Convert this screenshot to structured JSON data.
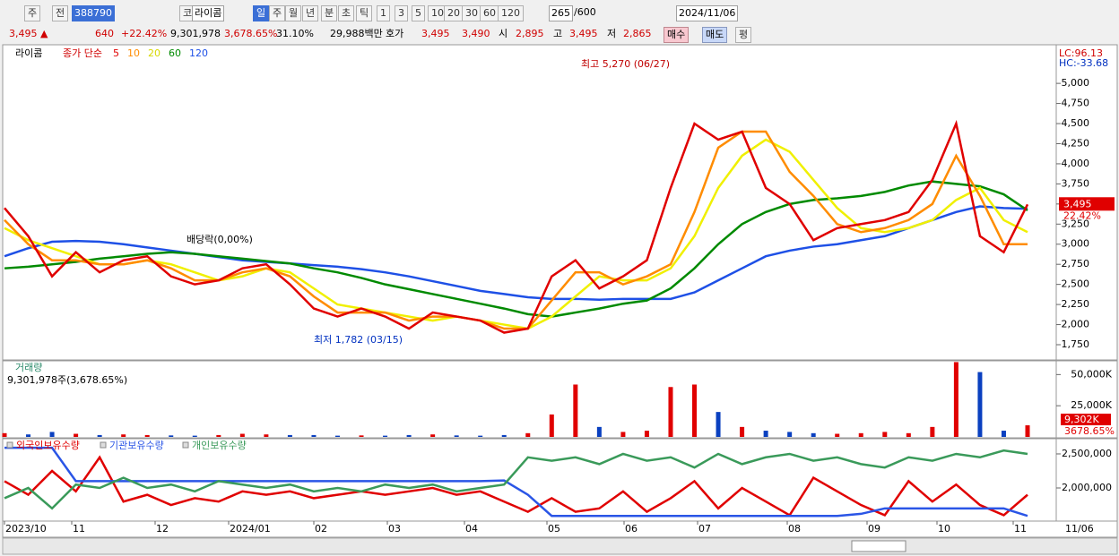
{
  "toolbar": {
    "items": [
      "주",
      "전",
      "388790",
      "코",
      "라이콤",
      "일",
      "주",
      "월",
      "년",
      "분",
      "초",
      "틱",
      "1",
      "3",
      "5",
      "10",
      "20",
      "30",
      "60",
      "120"
    ],
    "count": "265",
    "max": "/600",
    "date": "2024/11/06"
  },
  "quote": {
    "price": "3,495 ▲",
    "change": "640",
    "change_pct": "+22.42%",
    "volume": "9,301,978",
    "volume_pct": "3,678.65%",
    "turnover": "31.10%",
    "amount": "29,988백만",
    "ask_label": "호가",
    "ask": "3,495",
    "bid": "3,490",
    "open_label": "시",
    "open": "2,895",
    "high_label": "고",
    "high": "3,495",
    "low_label": "저",
    "low": "2,865",
    "buy": "매수",
    "sell": "매도",
    "avg": "평"
  },
  "chart_data": [
    {
      "type": "line",
      "name": "라이콤",
      "legend_label": "종가 단순",
      "series": [
        {
          "name": "5",
          "color": "#e00000",
          "values": [
            3450,
            3100,
            2600,
            2900,
            2650,
            2800,
            2850,
            2600,
            2500,
            2550,
            2700,
            2750,
            2500,
            2200,
            2100,
            2200,
            2100,
            1950,
            2150,
            2100,
            2050,
            1900,
            1950,
            2600,
            2800,
            2450,
            2600,
            2800,
            3700,
            4500,
            4300,
            4400,
            3700,
            3500,
            3050,
            3200,
            3250,
            3300,
            3400,
            3800,
            4500,
            3100,
            2900,
            3495
          ]
        },
        {
          "name": "10",
          "color": "#ff8c00",
          "values": [
            3300,
            3000,
            2800,
            2800,
            2750,
            2750,
            2800,
            2700,
            2550,
            2550,
            2650,
            2700,
            2600,
            2350,
            2150,
            2150,
            2150,
            2050,
            2100,
            2100,
            2050,
            1950,
            1950,
            2300,
            2650,
            2650,
            2500,
            2600,
            2750,
            3400,
            4200,
            4400,
            4400,
            3900,
            3600,
            3250,
            3150,
            3200,
            3300,
            3500,
            4100,
            3600,
            3000,
            3000
          ]
        },
        {
          "name": "20",
          "color": "#f0f000",
          "values": [
            3200,
            3050,
            2950,
            2850,
            2750,
            2750,
            2800,
            2750,
            2650,
            2550,
            2600,
            2700,
            2650,
            2450,
            2250,
            2200,
            2150,
            2100,
            2050,
            2100,
            2050,
            2000,
            1950,
            2100,
            2350,
            2600,
            2550,
            2550,
            2700,
            3100,
            3700,
            4100,
            4300,
            4150,
            3800,
            3450,
            3200,
            3150,
            3200,
            3300,
            3550,
            3700,
            3300,
            3150
          ]
        },
        {
          "name": "60",
          "color": "#008a00",
          "values": [
            2700,
            2720,
            2750,
            2780,
            2820,
            2850,
            2880,
            2900,
            2880,
            2850,
            2820,
            2790,
            2760,
            2700,
            2650,
            2580,
            2500,
            2440,
            2380,
            2320,
            2260,
            2200,
            2130,
            2100,
            2150,
            2200,
            2260,
            2300,
            2450,
            2700,
            3000,
            3250,
            3400,
            3500,
            3550,
            3570,
            3600,
            3650,
            3730,
            3780,
            3750,
            3720,
            3620,
            3420
          ]
        },
        {
          "name": "120",
          "color": "#1e50e6",
          "values": [
            2850,
            2950,
            3030,
            3040,
            3030,
            3000,
            2960,
            2920,
            2880,
            2840,
            2800,
            2780,
            2760,
            2740,
            2720,
            2690,
            2650,
            2600,
            2540,
            2480,
            2420,
            2380,
            2340,
            2320,
            2320,
            2310,
            2320,
            2320,
            2320,
            2400,
            2550,
            2700,
            2850,
            2920,
            2970,
            3000,
            3050,
            3100,
            3200,
            3300,
            3400,
            3470,
            3450,
            3440
          ]
        }
      ],
      "ylim": [
        1583,
        5458
      ],
      "yticks": [
        {
          "value": 1750,
          "label": "1,750"
        },
        {
          "value": 2000,
          "label": "2,000"
        },
        {
          "value": 2250,
          "label": "2,250"
        },
        {
          "value": 2500,
          "label": "2,500"
        },
        {
          "value": 2750,
          "label": "2,750"
        },
        {
          "value": 3000,
          "label": "3,000"
        },
        {
          "value": 3250,
          "label": "3,250"
        },
        {
          "value": 3500,
          "label": "3,500"
        },
        {
          "value": 3750,
          "label": "3,750"
        },
        {
          "value": 4000,
          "label": "4,000"
        },
        {
          "value": 4250,
          "label": "4,250"
        },
        {
          "value": 4500,
          "label": "4,500"
        },
        {
          "value": 4750,
          "label": "4,750"
        },
        {
          "value": 5000,
          "label": "5,000"
        }
      ],
      "annotations": [
        "최고 5,270 (06/27)",
        "배당락(0,00%)",
        "최저 1,782 (03/15)"
      ],
      "side_labels": [
        "LC:96.13",
        "HC:-33.68"
      ],
      "last_value_label": "3,495",
      "last_change_label": "22.42%",
      "xticks": [
        "2023/10",
        "11",
        "12",
        "2024/01",
        "02",
        "03",
        "04",
        "05",
        "06",
        "07",
        "08",
        "09",
        "10",
        "11"
      ],
      "x_end_label": "11/06"
    },
    {
      "type": "bar",
      "title": "거래량",
      "subtitle": "9,301,978주(3,678.65%)",
      "values": [
        3000000,
        2000000,
        4000000,
        2500000,
        1500000,
        2000000,
        1500000,
        1200000,
        1000000,
        1500000,
        2500000,
        2000000,
        1500000,
        1500000,
        1000000,
        1200000,
        1000000,
        1500000,
        2000000,
        1200000,
        1000000,
        1500000,
        3000000,
        18000000,
        42000000,
        8000000,
        4000000,
        5000000,
        40000000,
        42000000,
        20000000,
        8000000,
        5000000,
        4000000,
        3000000,
        2500000,
        3000000,
        4000000,
        3000000,
        8000000,
        60000000,
        52000000,
        5000000,
        9301978
      ],
      "up_color": "#e00000",
      "down_color": "#0a40c0",
      "ylim": [
        0,
        60300000
      ],
      "yticks": [
        {
          "value": 25000000,
          "label": "25,000K"
        },
        {
          "value": 50000000,
          "label": "50,000K"
        }
      ],
      "last_value_label": "9,302K",
      "last_pct_label": "3678.65%"
    },
    {
      "type": "line",
      "series": [
        {
          "name": "외국인보유수량",
          "color": "#e00000",
          "values": [
            2100000,
            1900000,
            2250000,
            1950000,
            2450000,
            1800000,
            1900000,
            1750000,
            1850000,
            1800000,
            1950000,
            1900000,
            1950000,
            1850000,
            1900000,
            1950000,
            1900000,
            1950000,
            2000000,
            1900000,
            1950000,
            1800000,
            1650000,
            1850000,
            1650000,
            1700000,
            1950000,
            1650000,
            1850000,
            2100000,
            1700000,
            2000000,
            1800000,
            1600000,
            2150000,
            1950000,
            1750000,
            1600000,
            2100000,
            1800000,
            2050000,
            1750000,
            1600000,
            1900000
          ]
        },
        {
          "name": "기관보유수량",
          "color": "#2a55e6",
          "values": [
            2590000,
            2590000,
            2590000,
            2100000,
            2100000,
            2100000,
            2100000,
            2100000,
            2100000,
            2100000,
            2100000,
            2100000,
            2100000,
            2100000,
            2100000,
            2100000,
            2100000,
            2100000,
            2100000,
            2100000,
            2100000,
            2110000,
            1900000,
            1590000,
            1590000,
            1590000,
            1590000,
            1590000,
            1590000,
            1590000,
            1590000,
            1590000,
            1590000,
            1590000,
            1590000,
            1590000,
            1620000,
            1700000,
            1700000,
            1700000,
            1700000,
            1700000,
            1700000,
            1590000
          ]
        },
        {
          "name": "개인보유수량",
          "color": "#3a9a5a",
          "values": [
            1850000,
            2000000,
            1700000,
            2050000,
            2000000,
            2150000,
            2000000,
            2050000,
            1950000,
            2100000,
            2050000,
            2000000,
            2050000,
            1950000,
            2000000,
            1950000,
            2050000,
            2000000,
            2050000,
            1950000,
            2000000,
            2050000,
            2450000,
            2400000,
            2450000,
            2350000,
            2500000,
            2400000,
            2450000,
            2300000,
            2500000,
            2350000,
            2450000,
            2500000,
            2400000,
            2450000,
            2350000,
            2300000,
            2450000,
            2400000,
            2500000,
            2450000,
            2550000,
            2500000
          ]
        }
      ],
      "ylim": [
        1540000,
        2710000
      ],
      "yticks": [
        {
          "value": 2000000,
          "label": "2,000,000"
        },
        {
          "value": 2500000,
          "label": "2,500,000"
        }
      ]
    }
  ]
}
